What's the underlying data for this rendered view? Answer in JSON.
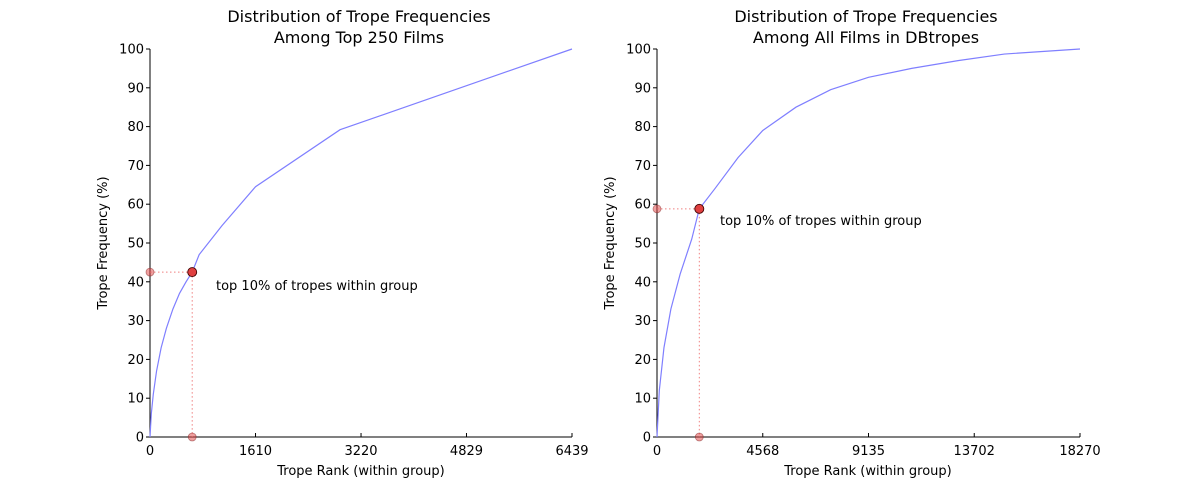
{
  "chart_data": [
    {
      "type": "line",
      "title_lines": [
        "Distribution of Trope Frequencies",
        "Among Top 250 Films"
      ],
      "xlabel": "Trope Rank (within group)",
      "ylabel": "Trope Frequency (%)",
      "xlim": [
        0,
        6439
      ],
      "ylim": [
        0,
        100
      ],
      "xticks": [
        0,
        1610,
        3220,
        4829,
        6439
      ],
      "yticks": [
        0,
        10,
        20,
        30,
        40,
        50,
        60,
        70,
        80,
        90,
        100
      ],
      "series": [
        {
          "color": "#7f7fff",
          "x": [
            0,
            20,
            50,
            100,
            170,
            250,
            350,
            450,
            550,
            644,
            750,
            1100,
            1610,
            2900,
            6439
          ],
          "y": [
            0,
            6,
            11,
            17,
            23,
            28,
            33,
            37,
            40,
            42.5,
            47,
            54.5,
            64.5,
            79.2,
            100
          ]
        }
      ],
      "marker": {
        "x": 644,
        "y": 42.5,
        "color": "#e04040"
      },
      "annotation": "top 10% of tropes within group"
    },
    {
      "type": "line",
      "title_lines": [
        "Distribution of Trope Frequencies",
        "Among All Films in DBtropes"
      ],
      "xlabel": "Trope Rank (within group)",
      "ylabel": "Trope Frequency (%)",
      "xlim": [
        0,
        18270
      ],
      "ylim": [
        0,
        100
      ],
      "xticks": [
        0,
        4568,
        9135,
        13702,
        18270
      ],
      "yticks": [
        0,
        10,
        20,
        30,
        40,
        50,
        60,
        70,
        80,
        90,
        100
      ],
      "series": [
        {
          "color": "#7f7fff",
          "x": [
            0,
            100,
            300,
            600,
            1000,
            1500,
            1827,
            2500,
            3500,
            4568,
            6000,
            7500,
            9135,
            11000,
            13000,
            15000,
            18270
          ],
          "y": [
            0,
            12,
            23,
            33,
            42,
            51,
            58.8,
            64,
            72,
            79,
            85,
            89.5,
            92.7,
            95,
            97,
            98.7,
            100
          ]
        }
      ],
      "marker": {
        "x": 1827,
        "y": 58.8,
        "color": "#e04040"
      },
      "annotation": "top 10% of tropes within group"
    }
  ]
}
